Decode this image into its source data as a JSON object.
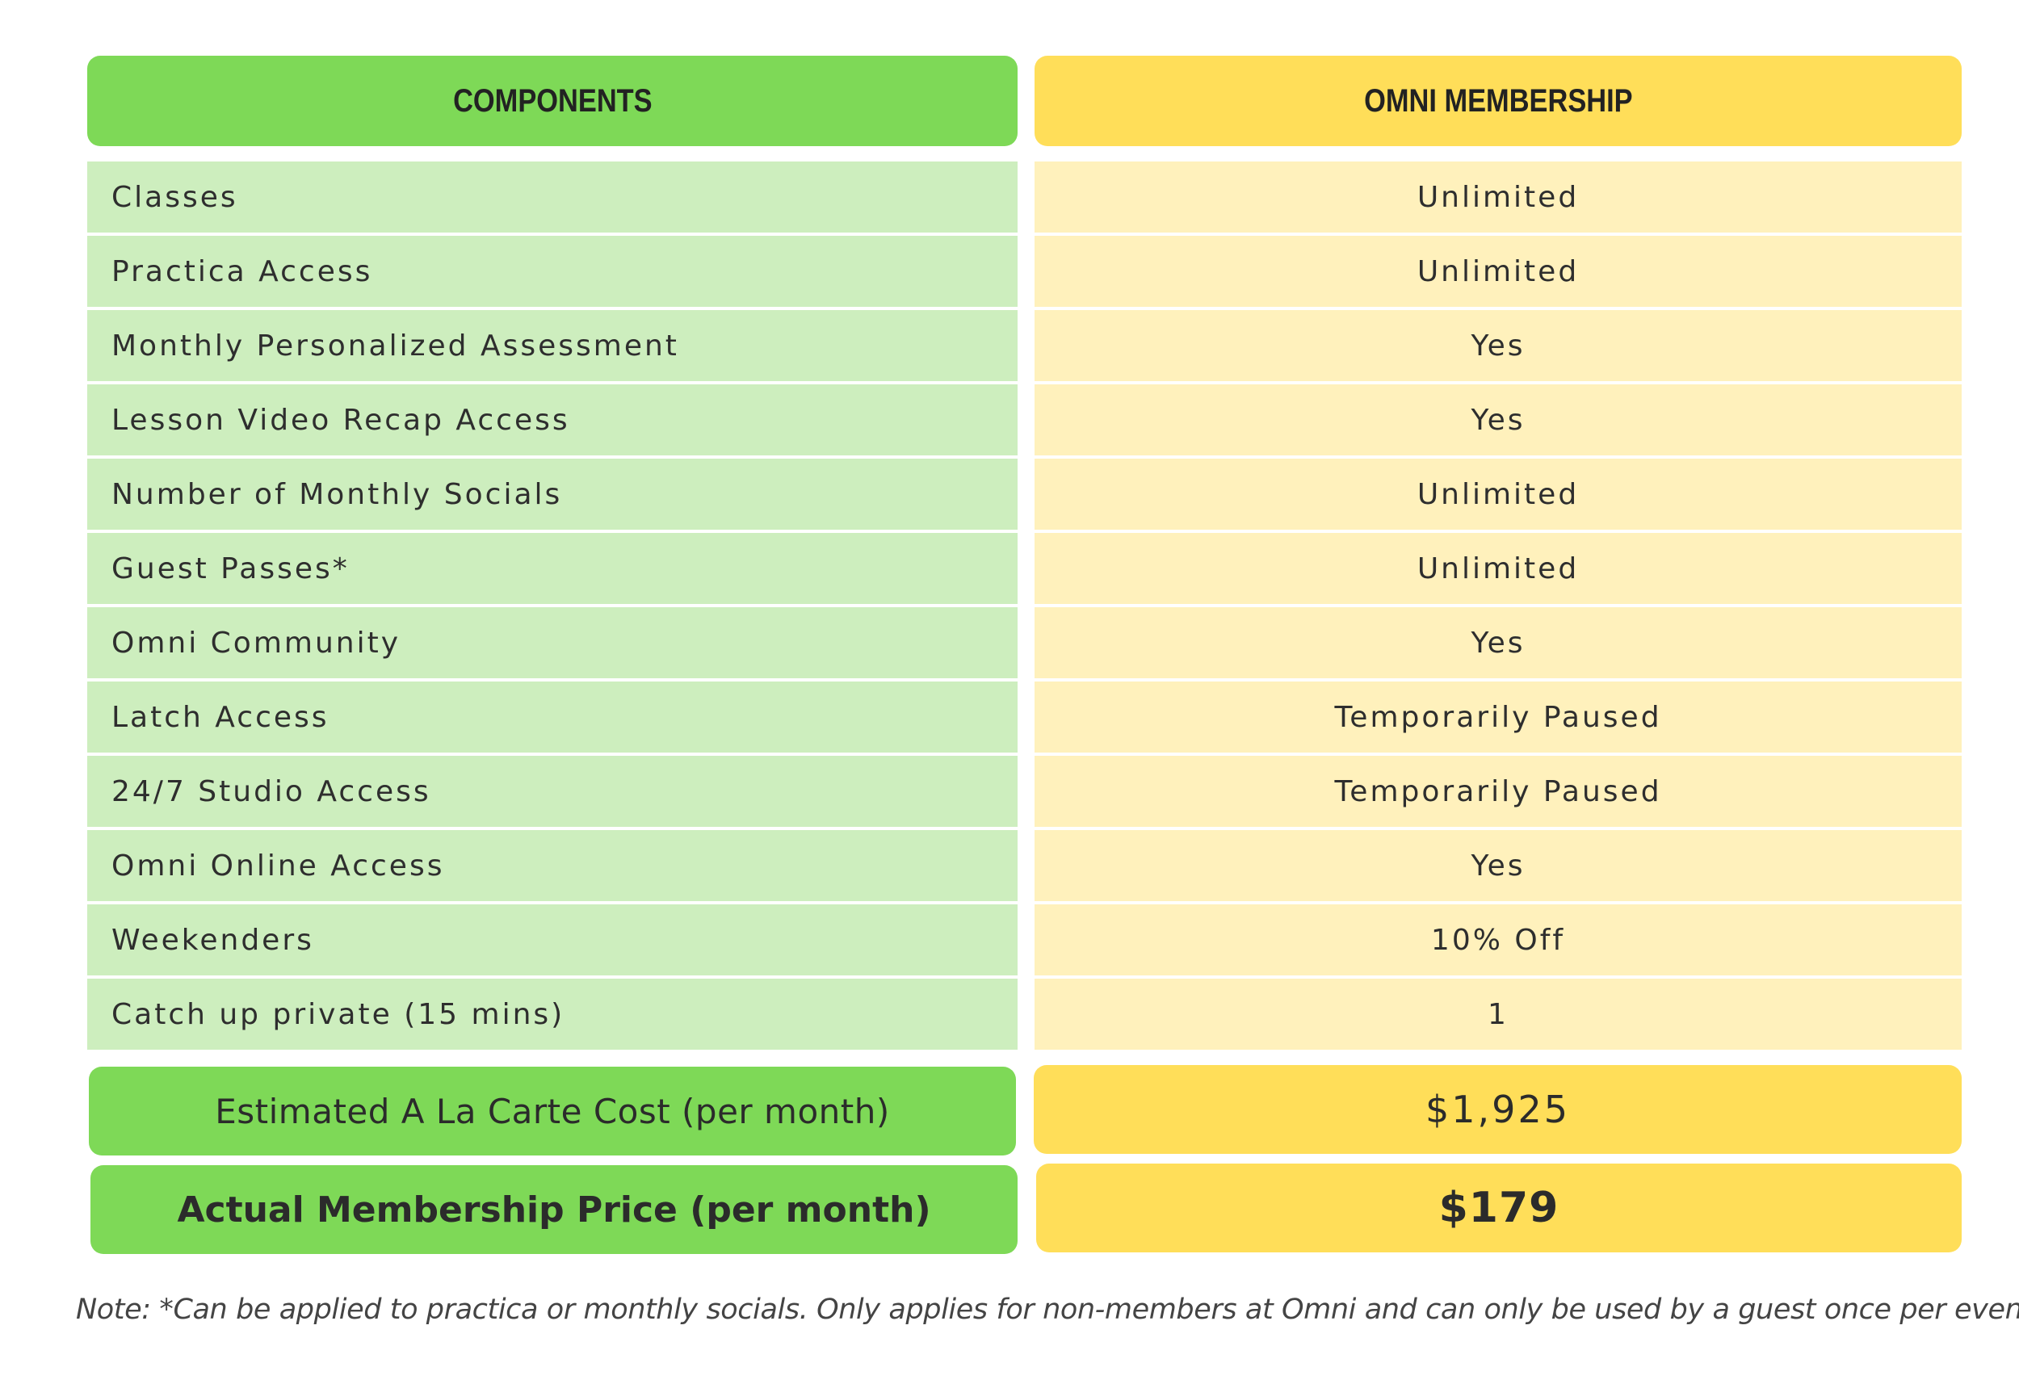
{
  "colors": {
    "green": "#7ED957",
    "green_light": "#CDEEBE",
    "yellow": "#FFDE59",
    "yellow_light": "#FFF1BC"
  },
  "header": {
    "components": "COMPONENTS",
    "membership": "OMNI MEMBERSHIP"
  },
  "rows": [
    {
      "component": "Classes",
      "value": "Unlimited"
    },
    {
      "component": "Practica Access",
      "value": "Unlimited"
    },
    {
      "component": "Monthly Personalized Assessment",
      "value": "Yes"
    },
    {
      "component": "Lesson Video Recap Access",
      "value": "Yes"
    },
    {
      "component": "Number of Monthly Socials",
      "value": "Unlimited"
    },
    {
      "component": "Guest Passes*",
      "value": "Unlimited"
    },
    {
      "component": "Omni Community",
      "value": "Yes"
    },
    {
      "component": "Latch Access",
      "value": "Temporarily Paused"
    },
    {
      "component": "24/7 Studio Access",
      "value": "Temporarily Paused"
    },
    {
      "component": "Omni Online Access",
      "value": "Yes"
    },
    {
      "component": "Weekenders",
      "value": "10% Off"
    },
    {
      "component": "Catch up private (15 mins)",
      "value": "1"
    }
  ],
  "summary": {
    "estimated_label": "Estimated A La Carte Cost (per month)",
    "estimated_value": "$1,925",
    "actual_label": "Actual Membership Price (per month)",
    "actual_value": "$179"
  },
  "note": "Note: *Can be applied to practica or monthly socials. Only applies for non-members at Omni and can only be used by a guest once per event."
}
